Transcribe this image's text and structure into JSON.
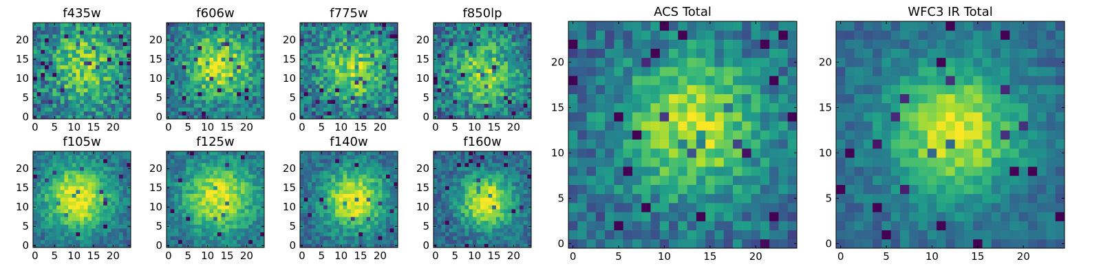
{
  "figure": {
    "colormap": "viridis",
    "colors": {
      "low": "#440154",
      "mid": "#21918c",
      "high": "#fde725"
    }
  },
  "chart_data": [
    {
      "type": "heatmap",
      "title": "f435w",
      "grid_size": 25,
      "xlim": [
        -0.5,
        24.5
      ],
      "ylim": [
        -0.5,
        24.5
      ],
      "xticks": [
        0,
        5,
        10,
        15,
        20
      ],
      "yticks": [
        0,
        5,
        10,
        15,
        20
      ],
      "center": [
        12.5,
        13.5
      ],
      "source_width": 7.5,
      "source_peak": 0.45,
      "noise_level": 0.45,
      "dark_fraction": 0.05
    },
    {
      "type": "heatmap",
      "title": "f606w",
      "grid_size": 25,
      "xlim": [
        -0.5,
        24.5
      ],
      "ylim": [
        -0.5,
        24.5
      ],
      "xticks": [
        0,
        5,
        10,
        15,
        20
      ],
      "yticks": [
        0,
        5,
        10,
        15,
        20
      ],
      "center": [
        13.0,
        13.5
      ],
      "source_width": 6.5,
      "source_peak": 0.55,
      "noise_level": 0.4,
      "dark_fraction": 0.05
    },
    {
      "type": "heatmap",
      "title": "f775w",
      "grid_size": 25,
      "xlim": [
        -0.5,
        24.5
      ],
      "ylim": [
        -0.5,
        24.5
      ],
      "xticks": [
        0,
        5,
        10,
        15,
        20
      ],
      "yticks": [
        0,
        5,
        10,
        15,
        20
      ],
      "center": [
        13.5,
        12.5
      ],
      "source_width": 7.0,
      "source_peak": 0.45,
      "noise_level": 0.45,
      "dark_fraction": 0.04
    },
    {
      "type": "heatmap",
      "title": "f850lp",
      "grid_size": 25,
      "xlim": [
        -0.5,
        24.5
      ],
      "ylim": [
        -0.5,
        24.5
      ],
      "xticks": [
        0,
        5,
        10,
        15,
        20
      ],
      "yticks": [
        0,
        5,
        10,
        15,
        20
      ],
      "center": [
        12.5,
        11.5
      ],
      "source_width": 6.5,
      "source_peak": 0.45,
      "noise_level": 0.45,
      "dark_fraction": 0.04
    },
    {
      "type": "heatmap",
      "title": "f105w",
      "grid_size": 25,
      "xlim": [
        -0.5,
        24.5
      ],
      "ylim": [
        -0.5,
        24.5
      ],
      "xticks": [
        0,
        5,
        10,
        15,
        20
      ],
      "yticks": [
        0,
        5,
        10,
        15,
        20
      ],
      "center": [
        11.0,
        12.5
      ],
      "source_width": 6.0,
      "source_peak": 0.65,
      "noise_level": 0.28,
      "dark_fraction": 0.02
    },
    {
      "type": "heatmap",
      "title": "f125w",
      "grid_size": 25,
      "xlim": [
        -0.5,
        24.5
      ],
      "ylim": [
        -0.5,
        24.5
      ],
      "xticks": [
        0,
        5,
        10,
        15,
        20
      ],
      "yticks": [
        0,
        5,
        10,
        15,
        20
      ],
      "center": [
        13.0,
        12.5
      ],
      "source_width": 6.5,
      "source_peak": 0.6,
      "noise_level": 0.28,
      "dark_fraction": 0.02
    },
    {
      "type": "heatmap",
      "title": "f140w",
      "grid_size": 25,
      "xlim": [
        -0.5,
        24.5
      ],
      "ylim": [
        -0.5,
        24.5
      ],
      "xticks": [
        0,
        5,
        10,
        15,
        20
      ],
      "yticks": [
        0,
        5,
        10,
        15,
        20
      ],
      "center": [
        13.5,
        12.0
      ],
      "source_width": 5.5,
      "source_peak": 0.65,
      "noise_level": 0.3,
      "dark_fraction": 0.03
    },
    {
      "type": "heatmap",
      "title": "f160w",
      "grid_size": 25,
      "xlim": [
        -0.5,
        24.5
      ],
      "ylim": [
        -0.5,
        24.5
      ],
      "xticks": [
        0,
        5,
        10,
        15,
        20
      ],
      "yticks": [
        0,
        5,
        10,
        15,
        20
      ],
      "center": [
        13.0,
        11.5
      ],
      "source_width": 4.5,
      "source_peak": 0.7,
      "noise_level": 0.3,
      "dark_fraction": 0.04
    },
    {
      "type": "heatmap",
      "title": "ACS Total",
      "grid_size": 25,
      "xlim": [
        -0.5,
        24.5
      ],
      "ylim": [
        -0.5,
        24.5
      ],
      "xticks": [
        0,
        5,
        10,
        15,
        20
      ],
      "yticks": [
        0,
        5,
        10,
        15,
        20
      ],
      "center": [
        13.0,
        13.0
      ],
      "source_width": 5.5,
      "source_peak": 0.55,
      "noise_level": 0.35,
      "dark_fraction": 0.05
    },
    {
      "type": "heatmap",
      "title": "WFC3 IR Total",
      "grid_size": 25,
      "xlim": [
        -0.5,
        24.5
      ],
      "ylim": [
        -0.5,
        24.5
      ],
      "xticks": [
        0,
        5,
        10,
        15,
        20
      ],
      "yticks": [
        0,
        5,
        10,
        15,
        20
      ],
      "center": [
        12.5,
        12.5
      ],
      "source_width": 5.0,
      "source_peak": 0.6,
      "noise_level": 0.22,
      "dark_fraction": 0.03
    }
  ]
}
